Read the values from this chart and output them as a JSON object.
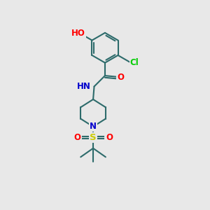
{
  "bg_color": "#e8e8e8",
  "bond_color": "#2d6b6b",
  "atom_colors": {
    "O": "#ff0000",
    "N": "#0000cc",
    "Cl": "#00cc00",
    "S": "#cccc00",
    "H": "#2d6b6b",
    "C": "#2d6b6b"
  },
  "bond_width": 1.5,
  "font_size": 8.5
}
